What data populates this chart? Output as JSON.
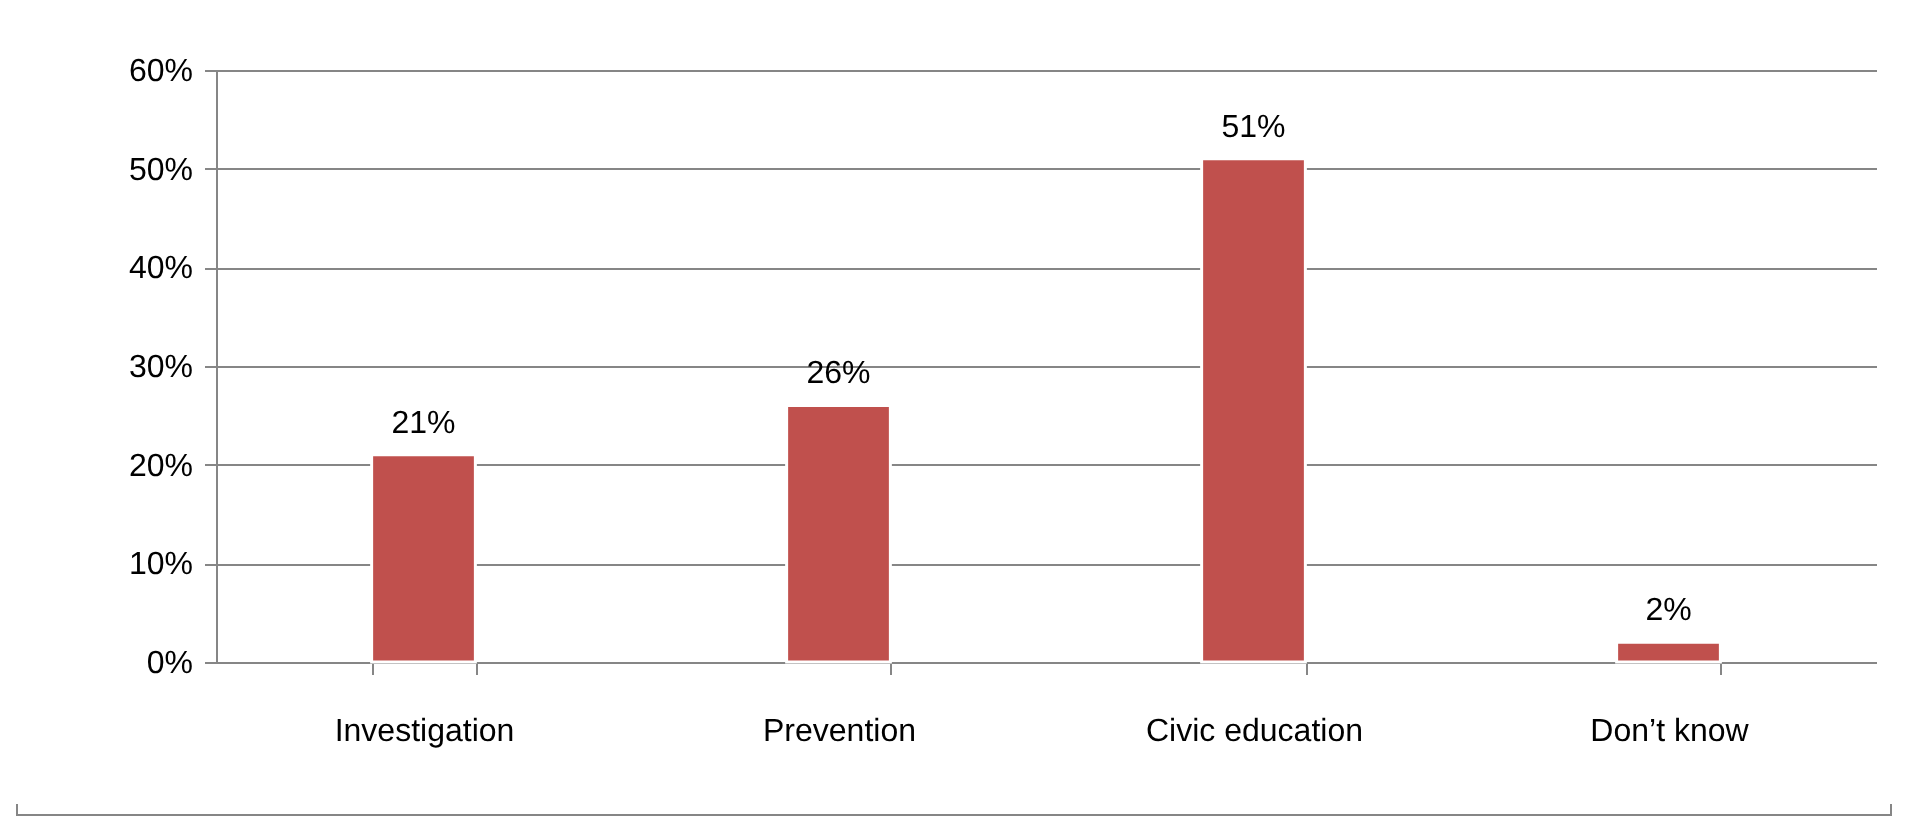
{
  "chart_data": {
    "type": "bar",
    "categories": [
      "Investigation",
      "Prevention",
      "Civic education",
      "Don’t know"
    ],
    "values": [
      21,
      26,
      51,
      2
    ],
    "value_labels": [
      "21%",
      "26%",
      "51%",
      "2%"
    ],
    "color": "#c0504d",
    "ylim": [
      0,
      60
    ],
    "yticks": [
      {
        "value": 0,
        "label": "0%"
      },
      {
        "value": 10,
        "label": "10%"
      },
      {
        "value": 20,
        "label": "20%"
      },
      {
        "value": 30,
        "label": "30%"
      },
      {
        "value": 40,
        "label": "40%"
      },
      {
        "value": 50,
        "label": "50%"
      },
      {
        "value": 60,
        "label": "60%"
      }
    ],
    "grid": "y"
  }
}
